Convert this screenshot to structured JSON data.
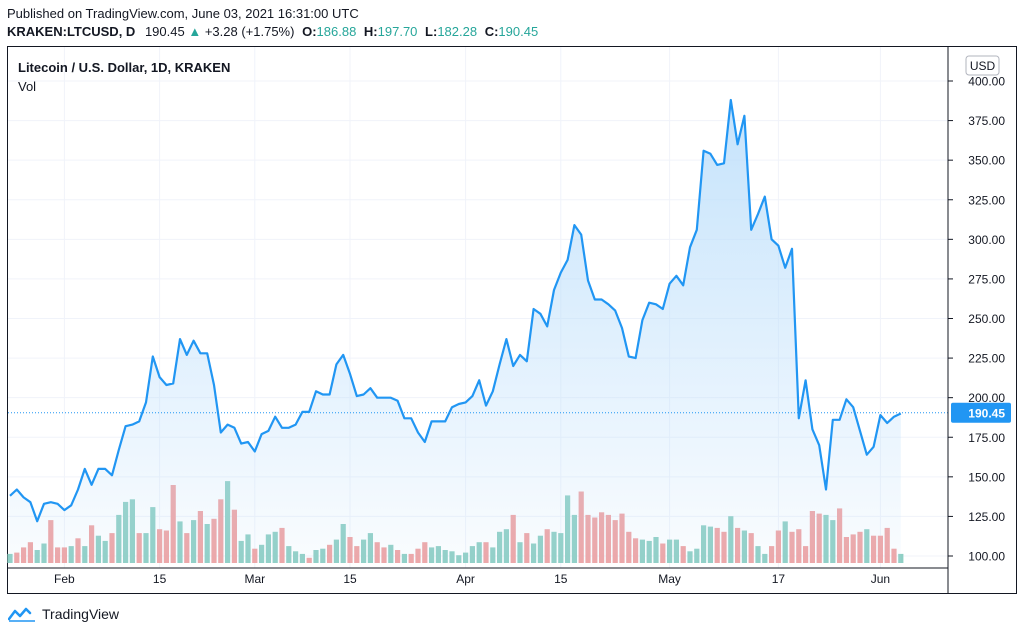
{
  "header": {
    "published": "Published on TradingView.com, June 03, 2021 16:31:00 UTC",
    "symbol": "KRAKEN:LTCUSD, D",
    "last": "190.45",
    "change": "+3.28 (+1.75%)",
    "o_label": "O:",
    "o_value": "186.88",
    "h_label": "H:",
    "h_value": "197.70",
    "l_label": "L:",
    "l_value": "182.28",
    "c_label": "C:",
    "c_value": "190.45"
  },
  "legend": {
    "title": "Litecoin / U.S. Dollar, 1D, KRAKEN",
    "vol_label": "Vol"
  },
  "footer": {
    "brand": "TradingView"
  },
  "colors": {
    "line": "#2196f3",
    "area_top": "#bbdefb",
    "vol_up": "#8fcfc4",
    "vol_down": "#f0a3a3",
    "price_tag": "#2196f3"
  },
  "chart_data": {
    "type": "area",
    "currency_label": "USD",
    "price_tag": "190.45",
    "y_ticks": [
      "100.00",
      "125.00",
      "150.00",
      "175.00",
      "200.00",
      "225.00",
      "250.00",
      "275.00",
      "300.00",
      "325.00",
      "350.00",
      "375.00",
      "400.00"
    ],
    "ylim": [
      93,
      408
    ],
    "x_ticks": [
      {
        "label": "Feb",
        "index": 8
      },
      {
        "label": "15",
        "index": 22
      },
      {
        "label": "Mar",
        "index": 36
      },
      {
        "label": "15",
        "index": 50
      },
      {
        "label": "Apr",
        "index": 67
      },
      {
        "label": "15",
        "index": 81
      },
      {
        "label": "May",
        "index": 97
      },
      {
        "label": "17",
        "index": 113
      },
      {
        "label": "Jun",
        "index": 128
      }
    ],
    "close": [
      138,
      142,
      137,
      134,
      122,
      133,
      134,
      133,
      129,
      132,
      142,
      155,
      145,
      155,
      155,
      151,
      167,
      182,
      183,
      185,
      197,
      226,
      213,
      208,
      209,
      237,
      227,
      236,
      228,
      228,
      208,
      178,
      183,
      181,
      171,
      172,
      166,
      177,
      179,
      188,
      181,
      181,
      183,
      191,
      191,
      204,
      202,
      202,
      221,
      227,
      215,
      201,
      202,
      206,
      200,
      200,
      200,
      198,
      187,
      187,
      178,
      172,
      185,
      185,
      185,
      194,
      196,
      197,
      201,
      211,
      195,
      204,
      221,
      237,
      220,
      227,
      223,
      256,
      253,
      245,
      268,
      279,
      287,
      309,
      303,
      274,
      262,
      262,
      259,
      255,
      244,
      226,
      225,
      249,
      260,
      259,
      256,
      272,
      277,
      271,
      295,
      306,
      356,
      354,
      347,
      348,
      388,
      360,
      378,
      306,
      316,
      327,
      300,
      296,
      282,
      294,
      187,
      211,
      180,
      170,
      142,
      186,
      186,
      199,
      194,
      179,
      164,
      169,
      189,
      184,
      188,
      190
    ],
    "volume_up": [
      1,
      0,
      0,
      0,
      1,
      1,
      0,
      0,
      0,
      1,
      0,
      1,
      0,
      1,
      1,
      0,
      1,
      1,
      1,
      0,
      1,
      1,
      0,
      0,
      0,
      1,
      0,
      1,
      0,
      1,
      0,
      0,
      1,
      0,
      1,
      1,
      0,
      1,
      1,
      1,
      0,
      1,
      1,
      1,
      0,
      1,
      1,
      0,
      1,
      1,
      0,
      0,
      1,
      1,
      0,
      0,
      1,
      0,
      1,
      0,
      0,
      0,
      1,
      1,
      1,
      1,
      1,
      1,
      1,
      1,
      0,
      1,
      1,
      1,
      0,
      1,
      0,
      1,
      1,
      0,
      1,
      1,
      1,
      1,
      0,
      0,
      0,
      0,
      0,
      0,
      0,
      0,
      0,
      1,
      1,
      1,
      0,
      1,
      1,
      0,
      1,
      1,
      1,
      1,
      0,
      0,
      1,
      0,
      1,
      0,
      1,
      1,
      0,
      0,
      1,
      0,
      0,
      0,
      0,
      0,
      1,
      1,
      0,
      0,
      0,
      0,
      1,
      0,
      0,
      0,
      0,
      1
    ],
    "volume": [
      107,
      108,
      112,
      116,
      110,
      115,
      133,
      112,
      112,
      113,
      119,
      113,
      129,
      121,
      117,
      123,
      137,
      147,
      149,
      123,
      123,
      143,
      126,
      125,
      160,
      132,
      123,
      133,
      140,
      130,
      134,
      149,
      163,
      141,
      117,
      122,
      111,
      114,
      122,
      124,
      127,
      113,
      109,
      107,
      104,
      110,
      111,
      114,
      118,
      130,
      120,
      113,
      118,
      123,
      116,
      112,
      114,
      110,
      107,
      107,
      111,
      116,
      112,
      113,
      110,
      109,
      106,
      108,
      113,
      116,
      116,
      112,
      124,
      126,
      137,
      116,
      123,
      115,
      121,
      126,
      124,
      123,
      152,
      137,
      155,
      137,
      135,
      139,
      137,
      133,
      138,
      124,
      119,
      118,
      117,
      120,
      115,
      118,
      118,
      113,
      109,
      111,
      129,
      128,
      127,
      124,
      136,
      127,
      125,
      123,
      113,
      107,
      113,
      125,
      132,
      124,
      126,
      113,
      140,
      138,
      137,
      133,
      142,
      120,
      122,
      124,
      126,
      121,
      121,
      127,
      111,
      107
    ]
  }
}
